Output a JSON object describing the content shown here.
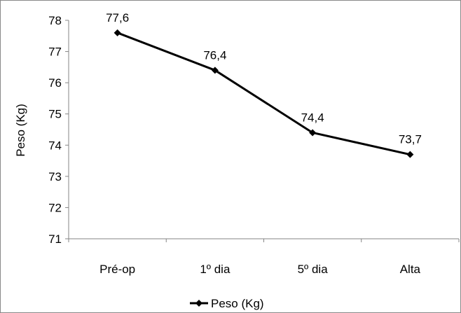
{
  "chart_data": {
    "type": "line",
    "categories": [
      "Pré-op",
      "1º dia",
      "5º dia",
      "Alta"
    ],
    "series": [
      {
        "name": "Peso (Kg)",
        "values": [
          77.6,
          76.4,
          74.4,
          73.7
        ],
        "labels": [
          "77,6",
          "76,4",
          "74,4",
          "73,7"
        ],
        "color": "#000000",
        "marker": "diamond"
      }
    ],
    "title": "",
    "xlabel": "",
    "ylabel": "Peso (Kg)",
    "ylim": [
      71,
      78
    ],
    "yticks": [
      71,
      72,
      73,
      74,
      75,
      76,
      77,
      78
    ],
    "grid": false,
    "legend_position": "bottom"
  }
}
